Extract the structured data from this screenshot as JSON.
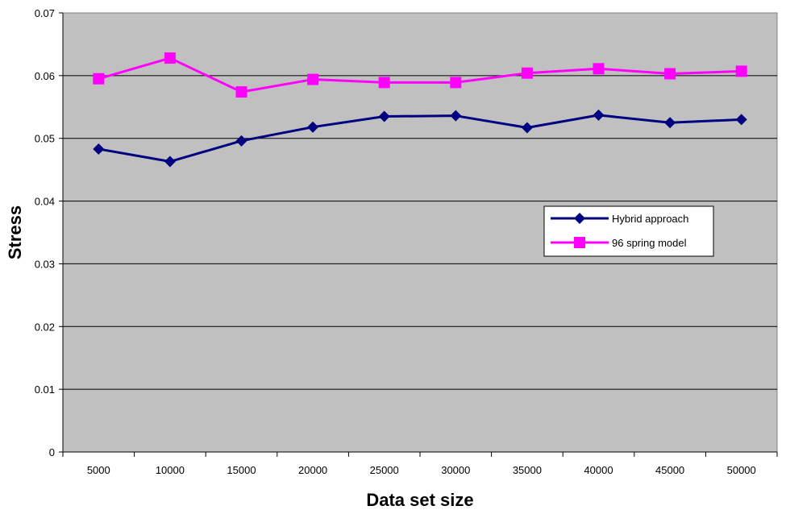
{
  "chart_data": {
    "type": "line",
    "title": "",
    "xlabel": "Data set size",
    "ylabel": "Stress",
    "categories": [
      "5000",
      "10000",
      "15000",
      "20000",
      "25000",
      "30000",
      "35000",
      "40000",
      "45000",
      "50000"
    ],
    "ylim": [
      0,
      0.07
    ],
    "yticks": [
      "0",
      "0.01",
      "0.02",
      "0.03",
      "0.04",
      "0.05",
      "0.06",
      "0.07"
    ],
    "grid": true,
    "legend_position": "right",
    "plot_background": "#c0c0c0",
    "series": [
      {
        "name": "Hybrid approach",
        "color": "#000080",
        "marker": "diamond",
        "values": [
          0.0483,
          0.0463,
          0.0496,
          0.0518,
          0.0535,
          0.0536,
          0.0517,
          0.0537,
          0.0525,
          0.053
        ]
      },
      {
        "name": "96 spring model",
        "color": "#ff00ff",
        "marker": "square",
        "values": [
          0.0595,
          0.0628,
          0.0574,
          0.0594,
          0.0589,
          0.0589,
          0.0604,
          0.0611,
          0.0603,
          0.0607
        ]
      }
    ]
  }
}
